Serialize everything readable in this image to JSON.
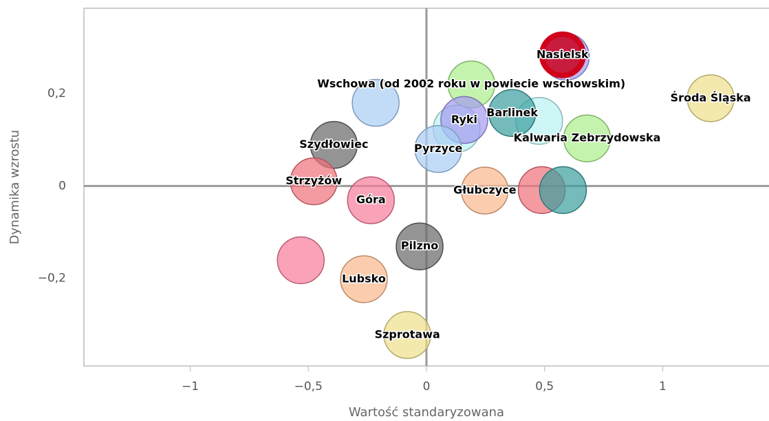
{
  "chart_data": {
    "type": "scatter",
    "x_label": "Wartość standaryzowana",
    "y_label": "Dynamika wzrostu",
    "xlim": [
      -1.45,
      1.45
    ],
    "ylim": [
      -0.39,
      0.385
    ],
    "xticks": [
      {
        "value": -1,
        "label": "−1"
      },
      {
        "value": -0.5,
        "label": "−0,5"
      },
      0,
      {
        "value": 0.5,
        "label": "0,5"
      },
      1
    ],
    "yticks": [
      {
        "value": -0.2,
        "label": "−0,2"
      },
      0,
      {
        "value": 0.2,
        "label": "0,2"
      }
    ],
    "x": [
      0.59,
      0.576,
      1.203,
      -0.215,
      0.19,
      0.477,
      0.363,
      0.128,
      0.16,
      0.68,
      0.05,
      -0.392,
      -0.477,
      -0.235,
      0.247,
      0.488,
      0.578,
      -0.029,
      -0.532,
      -0.265,
      -0.081
    ],
    "series": [
      {
        "values": [
          0.28,
          0.284,
          0.19,
          0.18,
          0.22,
          0.141,
          0.158,
          0.124,
          0.143,
          0.103,
          0.08,
          0.089,
          0.01,
          -0.031,
          -0.01,
          -0.009,
          -0.009,
          -0.131,
          -0.161,
          -0.202,
          -0.323
        ],
        "labels": [
          null,
          "Nasielsk",
          "Środa Śląska",
          null,
          "Wschowa (od 2002 roku w powiecie wschowskim)",
          null,
          "Barlinek",
          null,
          "Ryki",
          "Kalwaria Zebrzydowska",
          "Pyrzyce",
          "Szydłowiec",
          "Strzyżów",
          "Góra",
          "Głubczyce",
          null,
          null,
          "Pilzno",
          null,
          "Lubsko",
          "Szprotawa"
        ],
        "colors": [
          "#a49af0",
          "#c8001c",
          "#efe08a",
          "#a8cdf5",
          "#a9ee8a",
          "#b9f2f2",
          "#3a9e9e",
          "#b9f2f2",
          "#a49af0",
          "#a9ee8a",
          "#a8cdf5",
          "#666666",
          "#f0707a",
          "#f77a9a",
          "#f9b88c",
          "#f0707a",
          "#3a9e9e",
          "#666666",
          "#f77a9a",
          "#f9b88c",
          "#efe08a"
        ]
      }
    ]
  }
}
